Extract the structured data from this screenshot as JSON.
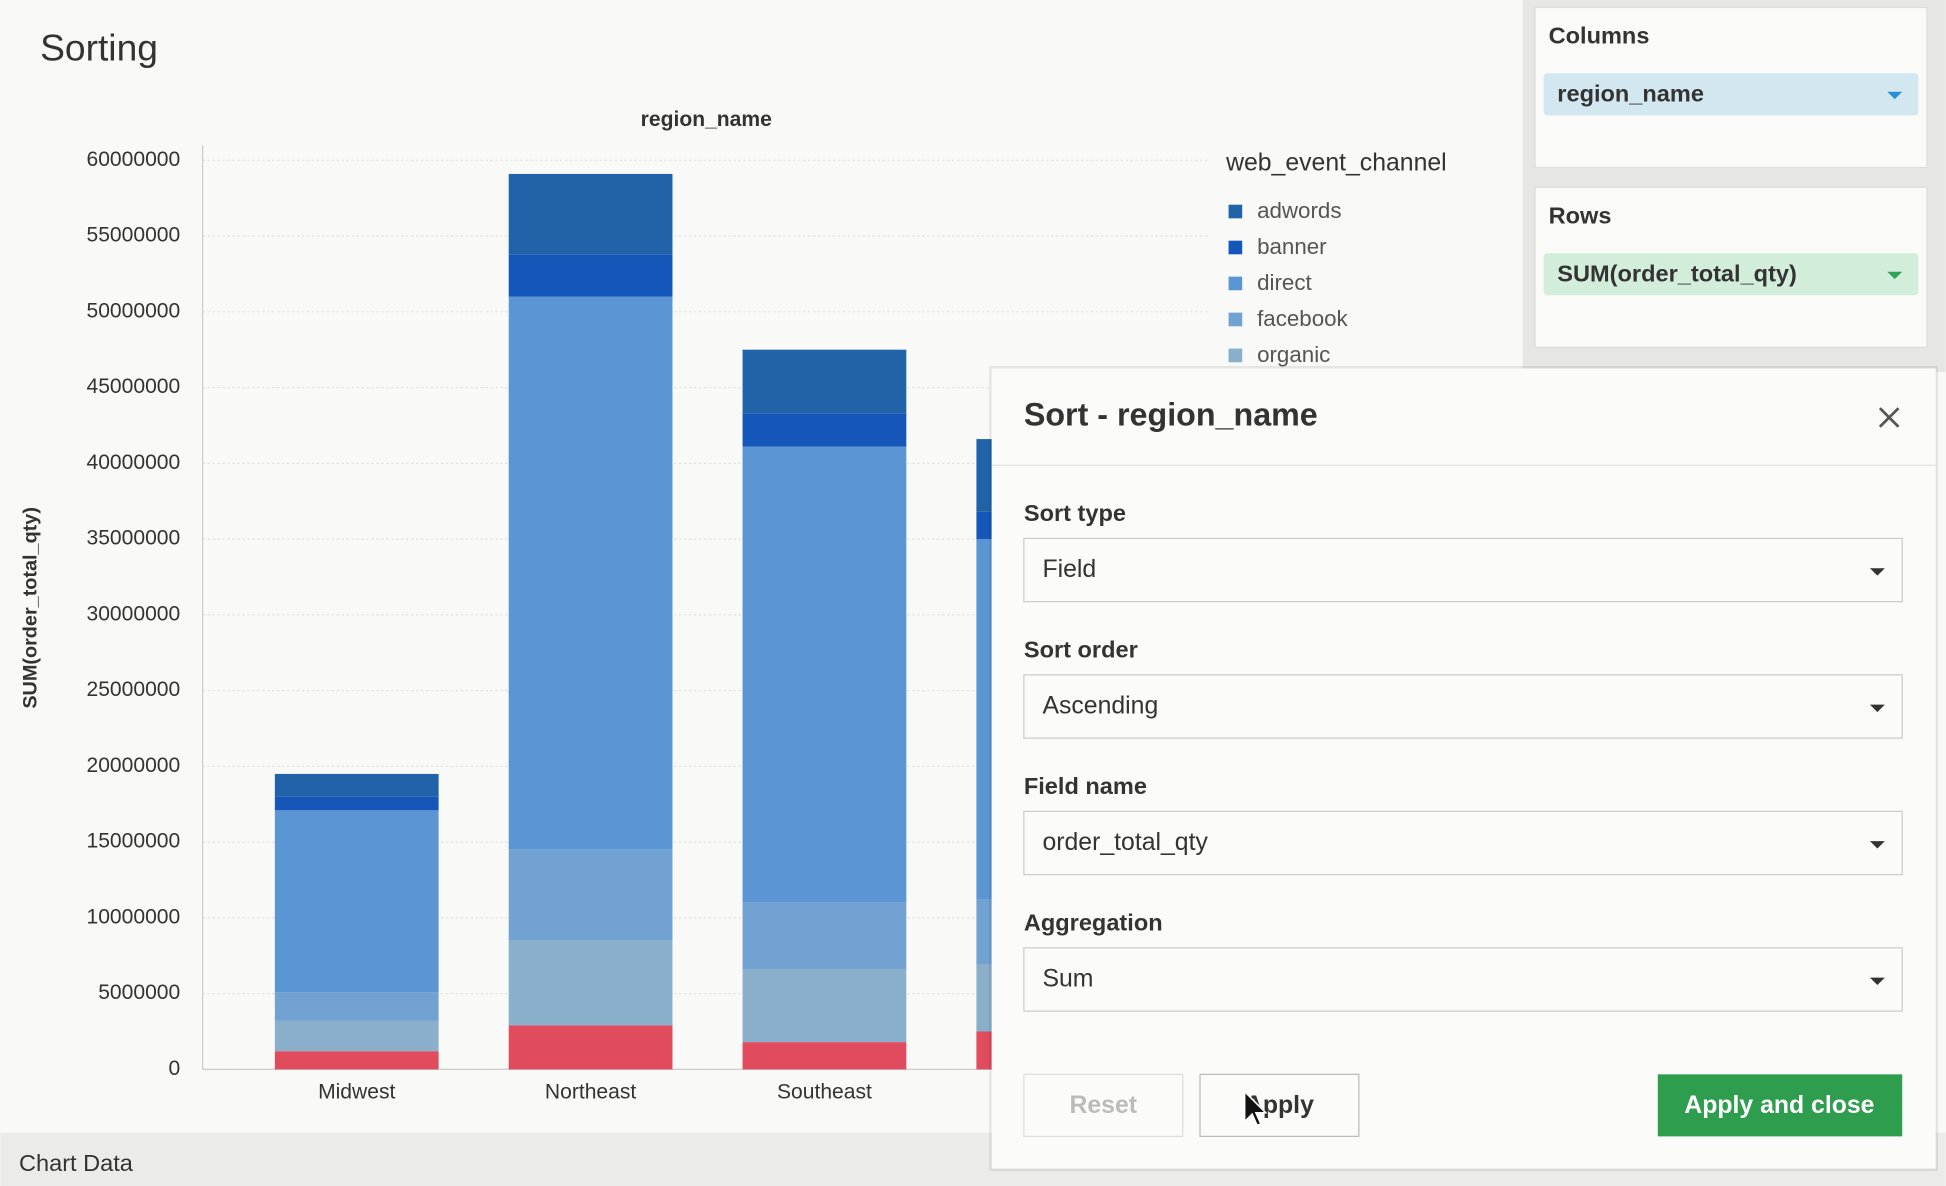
{
  "page": {
    "title": "Sorting"
  },
  "chart_data": {
    "type": "bar",
    "stacked": true,
    "x_label": "region_name",
    "y_label": "SUM(order_total_qty)",
    "legend_title": "web_event_channel",
    "categories": [
      "Midwest",
      "Northeast",
      "Southeast",
      null
    ],
    "series": [
      {
        "name": "adwords",
        "color": "#2063a8",
        "values": [
          1500000,
          5300000,
          4200000,
          4800000
        ]
      },
      {
        "name": "banner",
        "color": "#1557b8",
        "values": [
          900000,
          2800000,
          2200000,
          1800000
        ]
      },
      {
        "name": "direct",
        "color": "#5b95d3",
        "values": [
          12000000,
          36500000,
          30100000,
          23800000
        ]
      },
      {
        "name": "facebook",
        "color": "#72a2d2",
        "values": [
          1900000,
          6000000,
          4400000,
          4300000
        ]
      },
      {
        "name": "organic",
        "color": "#8aafcb",
        "values": [
          2000000,
          5600000,
          4800000,
          4400000
        ]
      },
      {
        "name": null,
        "color": "#e04b5e",
        "values": [
          1200000,
          2900000,
          1800000,
          2500000
        ]
      }
    ],
    "ylim": [
      0,
      61000000
    ],
    "yticks": [
      0,
      5000000,
      10000000,
      15000000,
      20000000,
      25000000,
      30000000,
      35000000,
      40000000,
      45000000,
      50000000,
      55000000,
      60000000
    ],
    "grid": true
  },
  "sidebar": {
    "columns": {
      "title": "Columns",
      "field": "region_name"
    },
    "rows": {
      "title": "Rows",
      "field": "SUM(order_total_qty)"
    }
  },
  "footer": {
    "label": "Chart Data"
  },
  "dialog": {
    "title": "Sort - region_name",
    "fields": [
      {
        "label": "Sort type",
        "value": "Field"
      },
      {
        "label": "Sort order",
        "value": "Ascending"
      },
      {
        "label": "Field name",
        "value": "order_total_qty"
      },
      {
        "label": "Aggregation",
        "value": "Sum"
      }
    ],
    "buttons": {
      "reset": "Reset",
      "apply": "Apply",
      "apply_close": "Apply and close"
    }
  }
}
